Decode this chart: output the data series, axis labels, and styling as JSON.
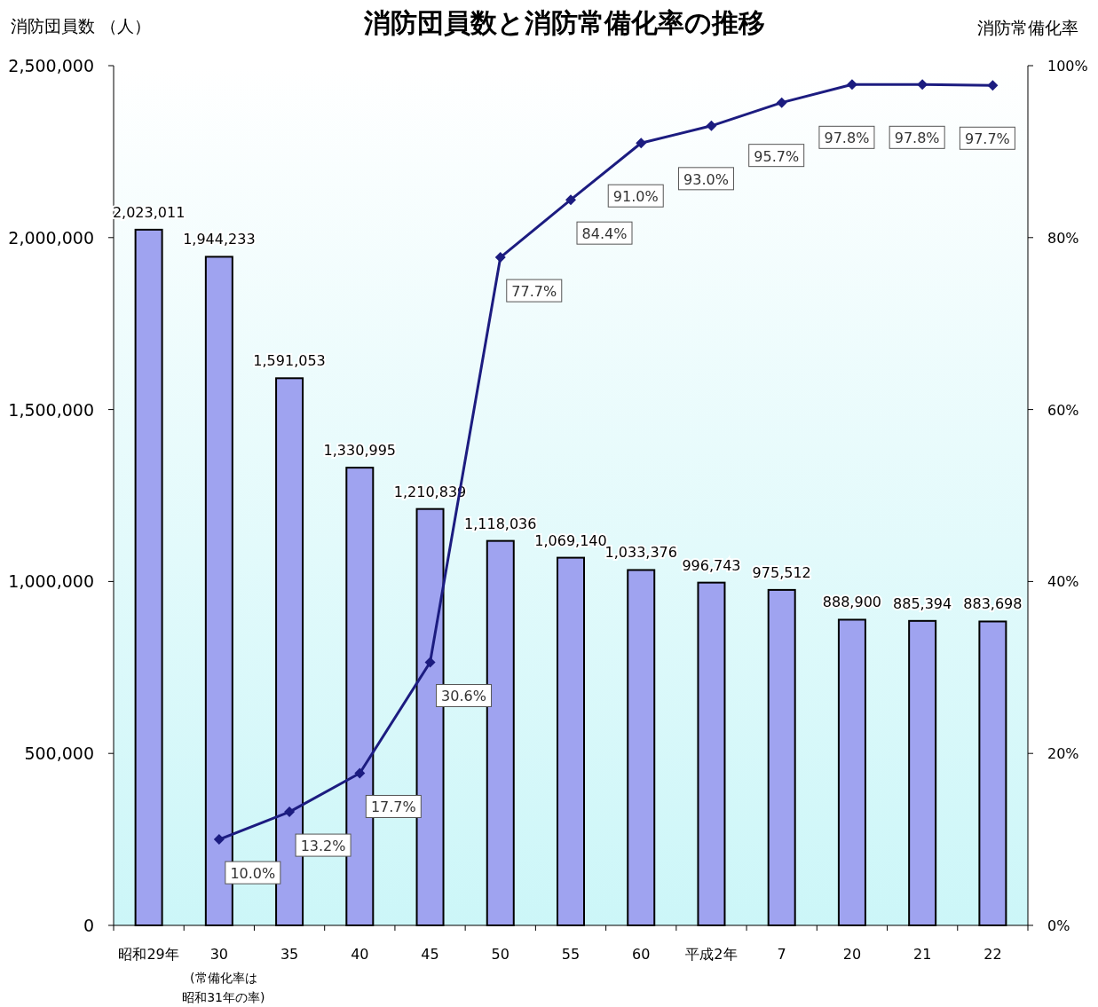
{
  "chart_data": {
    "type": "bar",
    "title": "消防団員数と消防常備化率の推移",
    "ylabel": "消防団員数 （人）",
    "y2label": "消防常備化率",
    "categories": [
      "昭和29年",
      "30",
      "35",
      "40",
      "45",
      "50",
      "55",
      "60",
      "平成2年",
      "7",
      "20",
      "21",
      "22"
    ],
    "ylim": [
      0,
      2500000
    ],
    "yticks": [
      {
        "value": 0,
        "label": "0"
      },
      {
        "value": 500000,
        "label": "500,000"
      },
      {
        "value": 1000000,
        "label": "1,000,000"
      },
      {
        "value": 1500000,
        "label": "1,500,000"
      },
      {
        "value": 2000000,
        "label": "2,000,000"
      },
      {
        "value": 2500000,
        "label": "2,500,000"
      }
    ],
    "y2lim": [
      0,
      100
    ],
    "y2ticks": [
      {
        "value": 0,
        "label": "0%"
      },
      {
        "value": 20,
        "label": "20%"
      },
      {
        "value": 40,
        "label": "40%"
      },
      {
        "value": 60,
        "label": "60%"
      },
      {
        "value": 80,
        "label": "80%"
      },
      {
        "value": 100,
        "label": "100%"
      }
    ],
    "series": [
      {
        "color": "#9fa3f0",
        "values": [
          2023011,
          1944233,
          1591053,
          1330995,
          1210839,
          1118036,
          1069140,
          1033376,
          996743,
          975512,
          888900,
          885394,
          883698
        ],
        "value_labels": [
          "2,023,011",
          "1,944,233",
          "1,591,053",
          "1,330,995",
          "1,210,839",
          "1,118,036",
          "1,069,140",
          "1,033,376",
          "996,743",
          "975,512",
          "888,900",
          "885,394",
          "883,698"
        ]
      },
      {
        "type": "line",
        "axis": "y2",
        "color": "#1c1c80",
        "marker": "diamond",
        "values": [
          null,
          10.0,
          13.2,
          17.7,
          30.6,
          77.7,
          84.4,
          91.0,
          93.0,
          95.7,
          97.8,
          97.8,
          97.7
        ],
        "value_labels": [
          null,
          "10.0%",
          "13.2%",
          "17.7%",
          "30.6%",
          "77.7%",
          "84.4%",
          "91.0%",
          "93.0%",
          "95.7%",
          "97.8%",
          "97.8%",
          "97.7%"
        ]
      }
    ],
    "annotations": [
      "(常備化率は",
      "昭和31年の率)"
    ]
  }
}
